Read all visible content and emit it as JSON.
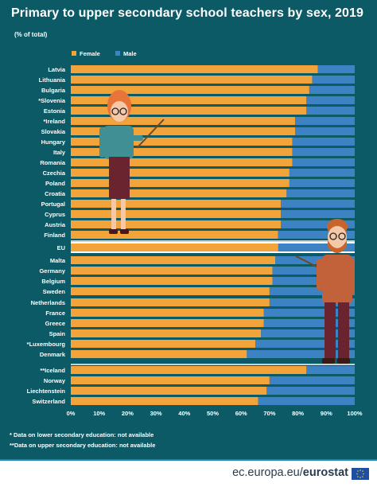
{
  "title": "Primary to upper secondary school teachers by sex, 2019",
  "subtitle": "(% of total)",
  "colors": {
    "background": "#0b5a66",
    "female": "#f2a33a",
    "male": "#3d83c3",
    "separator": "#ffffff"
  },
  "legend": {
    "female": "Female",
    "male": "Male"
  },
  "chart_data": {
    "type": "bar",
    "orientation": "horizontal",
    "stacked": true,
    "categories": [
      "Latvia",
      "Lithuania",
      "Bulgaria",
      "*Slovenia",
      "Estonia",
      "*Ireland",
      "Slovakia",
      "Hungary",
      "Italy",
      "Romania",
      "Czechia",
      "Poland",
      "Croatia",
      "Portugal",
      "Cyprus",
      "Austria",
      "Finland",
      "EU",
      "Malta",
      "Germany",
      "Belgium",
      "Sweden",
      "Netherlands",
      "France",
      "Greece",
      "Spain",
      "*Luxembourg",
      "Denmark",
      "**Iceland",
      "Norway",
      "Liechtenstein",
      "Switzerland"
    ],
    "series": [
      {
        "name": "Female",
        "values": [
          87,
          85,
          84,
          83,
          83,
          79,
          79,
          78,
          78,
          78,
          77,
          77,
          76,
          74,
          74,
          74,
          73,
          73,
          72,
          71,
          71,
          70,
          70,
          68,
          68,
          67,
          65,
          62,
          83,
          70,
          69,
          66
        ]
      },
      {
        "name": "Male",
        "values": [
          13,
          15,
          16,
          17,
          17,
          21,
          21,
          22,
          22,
          22,
          23,
          23,
          24,
          26,
          26,
          26,
          27,
          27,
          28,
          29,
          29,
          30,
          30,
          32,
          32,
          33,
          35,
          38,
          17,
          30,
          31,
          34
        ]
      }
    ],
    "x_tick_labels": [
      "0%",
      "10%",
      "20%",
      "30%",
      "40%",
      "50%",
      "60%",
      "70%",
      "80%",
      "90%",
      "100%"
    ],
    "xlim": [
      0,
      100
    ],
    "legend_position": "top"
  },
  "notes": [
    "* Data on lower secondary education: not available",
    "**Data on upper secondary education: not available"
  ],
  "source": {
    "prefix": "ec.europa.eu/",
    "brand": "eurostat"
  }
}
